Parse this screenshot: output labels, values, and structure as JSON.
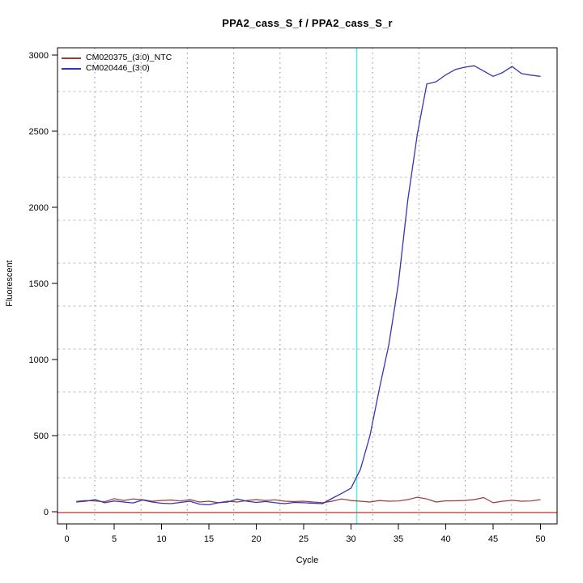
{
  "chart_data": {
    "type": "line",
    "title": "PPA2_cass_S_f / PPA2_cass_S_r",
    "xlabel": "Cycle",
    "ylabel": "Fluorescent",
    "xlim": [
      -1,
      52
    ],
    "ylim": [
      0,
      3000
    ],
    "x_ticks": [
      0,
      5,
      10,
      15,
      20,
      25,
      30,
      35,
      40,
      45,
      50
    ],
    "y_ticks": [
      0,
      500,
      1000,
      1500,
      2000,
      2500,
      3000
    ],
    "grid": "dotted",
    "legend_position": "top-left",
    "x": [
      1,
      2,
      3,
      4,
      5,
      6,
      7,
      8,
      9,
      10,
      11,
      12,
      13,
      14,
      15,
      16,
      17,
      18,
      19,
      20,
      21,
      22,
      23,
      24,
      25,
      26,
      27,
      28,
      29,
      30,
      31,
      32,
      33,
      34,
      35,
      36,
      37,
      38,
      39,
      40,
      41,
      42,
      43,
      44,
      45,
      46,
      47,
      48,
      49,
      50
    ],
    "series": [
      {
        "name": "CM020375_(3:0)_NTC",
        "color": "#9C3A3A",
        "values": [
          68,
          74,
          70,
          66,
          86,
          74,
          84,
          79,
          69,
          74,
          77,
          71,
          80,
          64,
          69,
          59,
          69,
          64,
          74,
          80,
          74,
          78,
          69,
          67,
          69,
          64,
          59,
          69,
          84,
          74,
          69,
          64,
          74,
          69,
          71,
          80,
          95,
          84,
          64,
          72,
          72,
          74,
          80,
          93,
          59,
          69,
          75,
          69,
          71,
          80
        ]
      },
      {
        "name": "CM020446_(3:0)",
        "color": "#3636AC",
        "values": [
          64,
          69,
          80,
          59,
          71,
          64,
          58,
          77,
          64,
          56,
          53,
          61,
          69,
          50,
          46,
          59,
          64,
          84,
          69,
          61,
          67,
          59,
          53,
          61,
          59,
          56,
          53,
          88,
          120,
          155,
          280,
          500,
          810,
          1100,
          1500,
          2050,
          2480,
          2810,
          2825,
          2870,
          2905,
          2920,
          2930,
          2895,
          2860,
          2885,
          2925,
          2878,
          2868,
          2860
        ]
      }
    ],
    "threshold_line": {
      "y": 0,
      "color": "#C05252"
    },
    "vline": {
      "x": 30.6,
      "color": "#5FE7EF"
    }
  }
}
